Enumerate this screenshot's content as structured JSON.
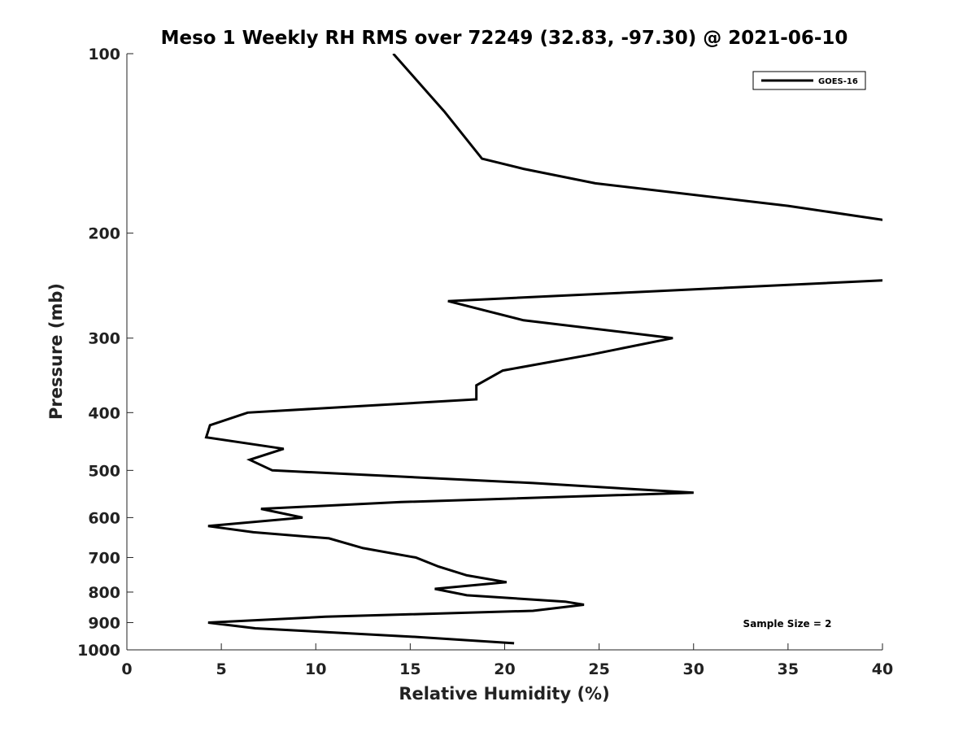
{
  "chart_data": {
    "type": "line",
    "title": "Meso 1 Weekly RH RMS over 72249 (32.83, -97.30) @ 2021-06-10",
    "xlabel": "Relative Humidity (%)",
    "ylabel": "Pressure (mb)",
    "xlim": [
      0,
      40
    ],
    "ylim": [
      1000,
      100
    ],
    "y_scale": "log",
    "grid": false,
    "legend_position": "top-right",
    "x_ticks": [
      "0",
      "5",
      "10",
      "15",
      "20",
      "25",
      "30",
      "35",
      "40"
    ],
    "y_ticks": [
      "100",
      "200",
      "300",
      "400",
      "500",
      "600",
      "700",
      "800",
      "900",
      "1000"
    ],
    "annotation": "Sample Size = 2",
    "series": [
      {
        "name": "GOES-16",
        "color": "#000000",
        "points": [
          {
            "x": 20.5,
            "y": 975
          },
          {
            "x": 15.0,
            "y": 950
          },
          {
            "x": 6.8,
            "y": 920
          },
          {
            "x": 4.3,
            "y": 900
          },
          {
            "x": 10.5,
            "y": 880
          },
          {
            "x": 21.5,
            "y": 860
          },
          {
            "x": 24.2,
            "y": 840
          },
          {
            "x": 23.2,
            "y": 830
          },
          {
            "x": 18.0,
            "y": 810
          },
          {
            "x": 16.3,
            "y": 790
          },
          {
            "x": 20.1,
            "y": 770
          },
          {
            "x": 18.0,
            "y": 750
          },
          {
            "x": 16.5,
            "y": 725
          },
          {
            "x": 15.3,
            "y": 700
          },
          {
            "x": 12.5,
            "y": 675
          },
          {
            "x": 10.7,
            "y": 650
          },
          {
            "x": 6.7,
            "y": 635
          },
          {
            "x": 4.3,
            "y": 620
          },
          {
            "x": 9.3,
            "y": 600
          },
          {
            "x": 7.1,
            "y": 580
          },
          {
            "x": 14.5,
            "y": 565
          },
          {
            "x": 30.0,
            "y": 545
          },
          {
            "x": 21.5,
            "y": 525
          },
          {
            "x": 7.7,
            "y": 500
          },
          {
            "x": 6.5,
            "y": 480
          },
          {
            "x": 8.3,
            "y": 460
          },
          {
            "x": 4.2,
            "y": 440
          },
          {
            "x": 4.4,
            "y": 420
          },
          {
            "x": 6.4,
            "y": 400
          },
          {
            "x": 18.5,
            "y": 380
          },
          {
            "x": 18.5,
            "y": 360
          },
          {
            "x": 19.9,
            "y": 340
          },
          {
            "x": 24.5,
            "y": 320
          },
          {
            "x": 28.9,
            "y": 300
          },
          {
            "x": 21.0,
            "y": 280
          },
          {
            "x": 17.0,
            "y": 260
          },
          {
            "x": 40.0,
            "y": 240
          },
          {
            "x": 41.5,
            "y": 230
          },
          {
            "x": 41.5,
            "y": 195
          },
          {
            "x": 40.0,
            "y": 190
          },
          {
            "x": 35.0,
            "y": 180
          },
          {
            "x": 24.8,
            "y": 165
          },
          {
            "x": 21.0,
            "y": 156
          },
          {
            "x": 18.8,
            "y": 150
          },
          {
            "x": 16.8,
            "y": 125
          },
          {
            "x": 14.1,
            "y": 100
          }
        ]
      }
    ]
  }
}
